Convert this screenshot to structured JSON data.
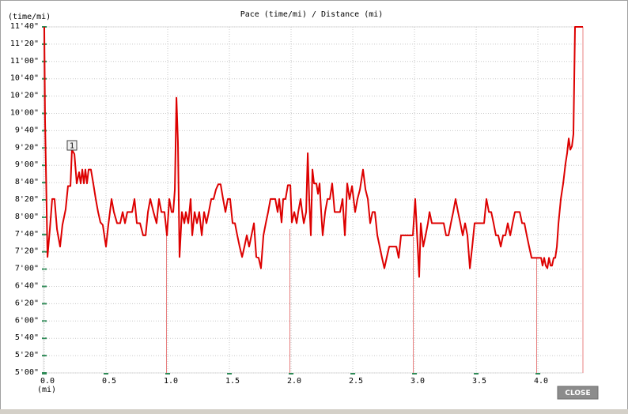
{
  "chart_data": {
    "type": "line",
    "title": "Pace (time/mi) / Distance (mi)",
    "y_label": "(time/mi)",
    "x_label": "(mi)",
    "annotation": "1",
    "button": "CLOSE",
    "grid": true,
    "color": "#dd0000",
    "xlim": [
      0,
      4.365
    ],
    "ylim": [
      300,
      700
    ],
    "xticks": [
      {
        "value": 0,
        "label": "0.0"
      },
      0.5,
      {
        "value": 1,
        "label": "1.0"
      },
      1.5,
      {
        "value": 2,
        "label": "2.0"
      },
      2.5,
      {
        "value": 3,
        "label": "3.0"
      },
      3.5,
      {
        "value": 4,
        "label": "4.0"
      }
    ],
    "yticks": [
      {
        "value": 300,
        "label": "5'00\""
      },
      {
        "value": 320,
        "label": "5'20\""
      },
      {
        "value": 340,
        "label": "5'40\""
      },
      {
        "value": 360,
        "label": "6'00\""
      },
      {
        "value": 380,
        "label": "6'20\""
      },
      {
        "value": 400,
        "label": "6'40\""
      },
      {
        "value": 420,
        "label": "7'00\""
      },
      {
        "value": 440,
        "label": "7'20\""
      },
      {
        "value": 460,
        "label": "7'40\""
      },
      {
        "value": 480,
        "label": "8'00\""
      },
      {
        "value": 500,
        "label": "8'20\""
      },
      {
        "value": 520,
        "label": "8'40\""
      },
      {
        "value": 540,
        "label": "9'00\""
      },
      {
        "value": 560,
        "label": "9'20\""
      },
      {
        "value": 580,
        "label": "9'40\""
      },
      {
        "value": 600,
        "label": "10'00\""
      },
      {
        "value": 620,
        "label": "10'20\""
      },
      {
        "value": 640,
        "label": "10'40\""
      },
      {
        "value": 660,
        "label": "11'00\""
      },
      {
        "value": 680,
        "label": "11'20\""
      },
      {
        "value": 700,
        "label": "11'40\""
      }
    ],
    "x": [
      0,
      0.006,
      0.026,
      0.045,
      0.064,
      0.083,
      0.103,
      0.128,
      0.147,
      0.173,
      0.192,
      0.212,
      0.224,
      0.244,
      0.263,
      0.282,
      0.295,
      0.308,
      0.321,
      0.333,
      0.346,
      0.359,
      0.378,
      0.397,
      0.417,
      0.436,
      0.455,
      0.474,
      0.5,
      0.519,
      0.545,
      0.564,
      0.59,
      0.615,
      0.635,
      0.654,
      0.673,
      0.692,
      0.712,
      0.731,
      0.75,
      0.776,
      0.801,
      0.821,
      0.84,
      0.859,
      0.885,
      0.91,
      0.929,
      0.949,
      0.974,
      0.994,
      1.013,
      1.032,
      1.045,
      1.058,
      1.071,
      1.083,
      1.096,
      1.115,
      1.135,
      1.147,
      1.167,
      1.186,
      1.199,
      1.218,
      1.237,
      1.256,
      1.276,
      1.295,
      1.314,
      1.333,
      1.353,
      1.372,
      1.391,
      1.41,
      1.429,
      1.449,
      1.468,
      1.487,
      1.506,
      1.526,
      1.545,
      1.564,
      1.583,
      1.603,
      1.622,
      1.641,
      1.66,
      1.679,
      1.699,
      1.718,
      1.737,
      1.756,
      1.776,
      1.795,
      1.814,
      1.833,
      1.853,
      1.872,
      1.891,
      1.904,
      1.923,
      1.936,
      1.955,
      1.974,
      1.994,
      2.006,
      2.026,
      2.045,
      2.058,
      2.077,
      2.09,
      2.103,
      2.122,
      2.135,
      2.147,
      2.16,
      2.173,
      2.186,
      2.205,
      2.218,
      2.231,
      2.244,
      2.256,
      2.276,
      2.295,
      2.314,
      2.333,
      2.353,
      2.378,
      2.397,
      2.417,
      2.436,
      2.455,
      2.474,
      2.494,
      2.519,
      2.538,
      2.558,
      2.583,
      2.603,
      2.622,
      2.641,
      2.66,
      2.679,
      2.699,
      2.718,
      2.737,
      2.756,
      2.776,
      2.795,
      2.814,
      2.833,
      2.853,
      2.872,
      2.891,
      2.91,
      2.929,
      2.949,
      2.968,
      2.987,
      3.006,
      3.026,
      3.038,
      3.051,
      3.071,
      3.09,
      3.109,
      3.122,
      3.141,
      3.16,
      3.179,
      3.199,
      3.218,
      3.237,
      3.256,
      3.276,
      3.295,
      3.314,
      3.333,
      3.353,
      3.372,
      3.391,
      3.41,
      3.429,
      3.449,
      3.468,
      3.487,
      3.506,
      3.526,
      3.545,
      3.564,
      3.583,
      3.603,
      3.622,
      3.641,
      3.66,
      3.679,
      3.699,
      3.718,
      3.737,
      3.756,
      3.776,
      3.795,
      3.814,
      3.833,
      3.853,
      3.872,
      3.891,
      3.91,
      3.929,
      3.949,
      3.968,
      3.987,
      4.006,
      4.026,
      4.038,
      4.051,
      4.064,
      4.077,
      4.09,
      4.103,
      4.115,
      4.128,
      4.141,
      4.154,
      4.167,
      4.186,
      4.205,
      4.224,
      4.237,
      4.25,
      4.263,
      4.276,
      4.288,
      4.301,
      4.365
    ],
    "values": [
      700,
      594,
      434,
      466,
      501,
      501,
      466,
      446,
      471,
      489,
      516,
      516,
      558,
      553,
      519,
      532,
      519,
      535,
      519,
      535,
      519,
      535,
      535,
      519,
      501,
      486,
      474,
      471,
      446,
      471,
      501,
      486,
      473,
      473,
      486,
      473,
      486,
      486,
      486,
      501,
      473,
      473,
      459,
      459,
      486,
      501,
      486,
      473,
      501,
      486,
      486,
      459,
      501,
      486,
      486,
      512,
      618,
      567,
      434,
      486,
      473,
      486,
      473,
      501,
      459,
      486,
      473,
      486,
      459,
      486,
      473,
      486,
      501,
      501,
      512,
      518,
      518,
      501,
      486,
      501,
      501,
      473,
      473,
      459,
      446,
      434,
      446,
      459,
      446,
      459,
      473,
      434,
      433,
      421,
      459,
      473,
      486,
      501,
      501,
      501,
      486,
      501,
      474,
      501,
      501,
      517,
      517,
      474,
      486,
      473,
      486,
      501,
      486,
      473,
      486,
      554,
      501,
      459,
      535,
      519,
      519,
      507,
      519,
      486,
      459,
      486,
      501,
      501,
      519,
      486,
      486,
      486,
      501,
      459,
      519,
      501,
      516,
      486,
      501,
      512,
      535,
      512,
      501,
      473,
      486,
      486,
      459,
      446,
      433,
      421,
      434,
      446,
      446,
      446,
      446,
      433,
      459,
      459,
      459,
      459,
      459,
      459,
      501,
      446,
      411,
      473,
      446,
      459,
      473,
      486,
      473,
      473,
      473,
      473,
      473,
      473,
      459,
      459,
      473,
      486,
      501,
      486,
      473,
      459,
      473,
      459,
      421,
      446,
      473,
      473,
      473,
      473,
      473,
      501,
      486,
      486,
      473,
      459,
      459,
      446,
      459,
      459,
      473,
      459,
      473,
      486,
      486,
      486,
      473,
      473,
      459,
      446,
      433,
      433,
      433,
      433,
      433,
      424,
      433,
      424,
      421,
      433,
      424,
      424,
      433,
      433,
      446,
      473,
      501,
      519,
      542,
      554,
      571,
      558,
      562,
      576,
      700,
      700
    ]
  }
}
